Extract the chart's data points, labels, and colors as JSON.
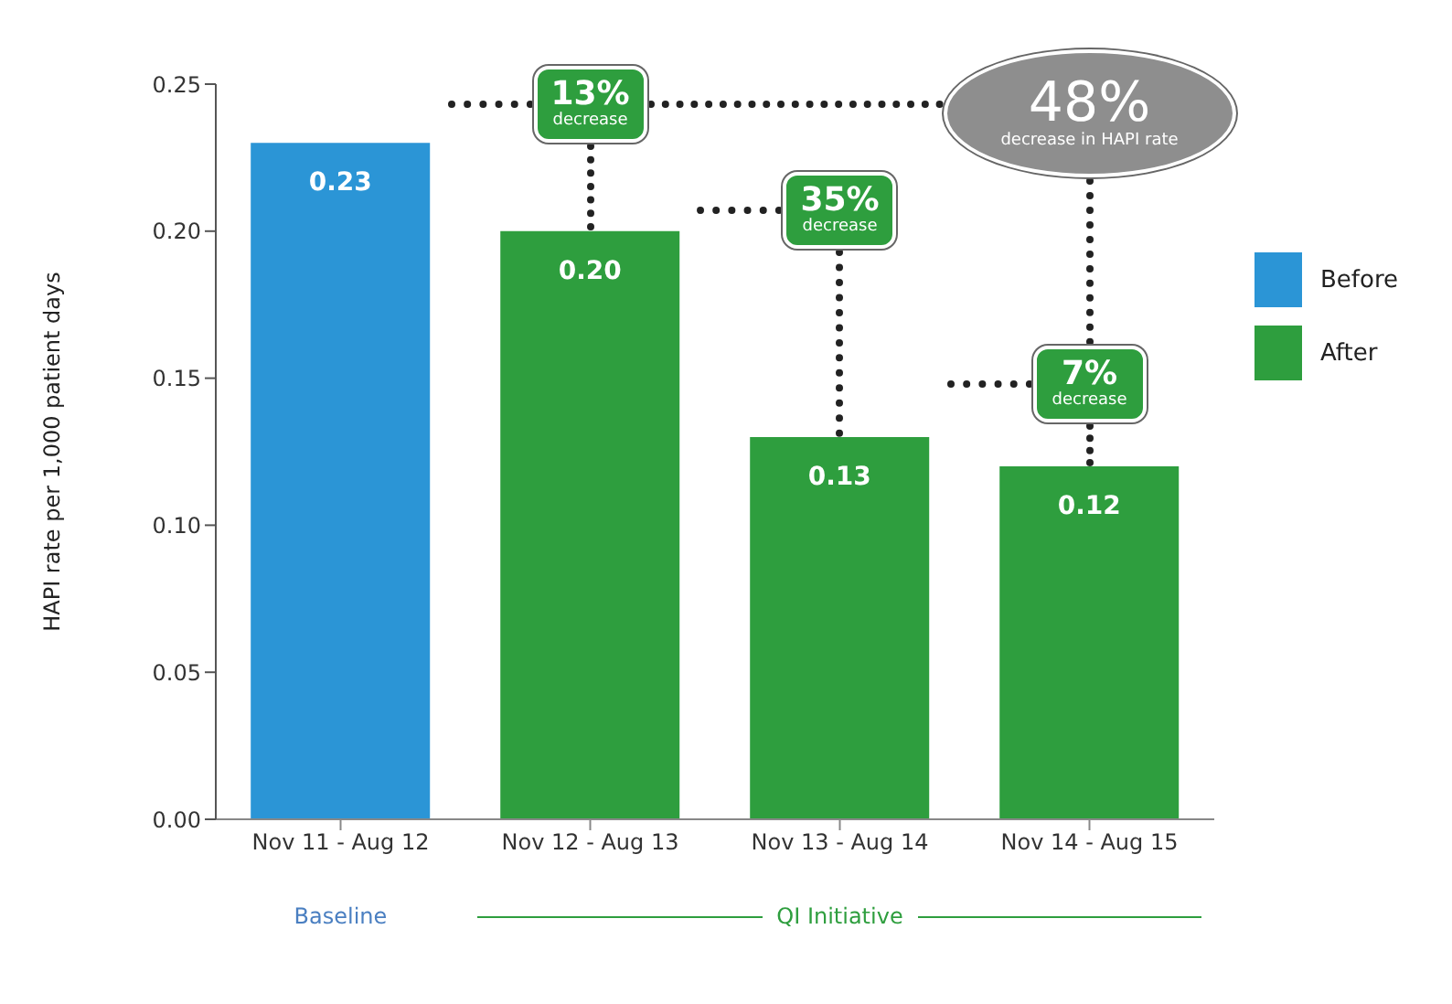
{
  "chart_data": {
    "type": "bar",
    "ylabel": "HAPI rate per 1,000 patient days",
    "categories": [
      "Nov 11 - Aug 12",
      "Nov 12 - Aug 13",
      "Nov 13 - Aug 14",
      "Nov 14 - Aug 15"
    ],
    "series": [
      {
        "name": "Before",
        "color": "#2b95d6",
        "values": [
          0.23,
          null,
          null,
          null
        ],
        "value_labels": [
          "0.23",
          null,
          null,
          null
        ]
      },
      {
        "name": "After",
        "color": "#2e9e3e",
        "values": [
          null,
          0.2,
          0.13,
          0.12
        ],
        "value_labels": [
          null,
          "0.20",
          "0.13",
          "0.12"
        ]
      }
    ],
    "stacked": true,
    "ylim": [
      0,
      0.25
    ],
    "yticks": [
      {
        "value": 0,
        "label": "0.00"
      },
      {
        "value": 0.05,
        "label": "0.05"
      },
      {
        "value": 0.1,
        "label": "0.10"
      },
      {
        "value": 0.15,
        "label": "0.15"
      },
      {
        "value": 0.2,
        "label": "0.20"
      },
      {
        "value": 0.25,
        "label": "0.25"
      }
    ],
    "grid": false,
    "legend": "right",
    "annotations": [
      {
        "text": "13% decrease",
        "x": "Nov 12 - Aug 13",
        "y": 0.2
      },
      {
        "text": "35% decrease",
        "x": "Nov 13 - Aug 14",
        "y": 0.13
      },
      {
        "text": "7% decrease",
        "x": "Nov 14 - Aug 15",
        "y": 0.12
      },
      "48% decrease in HAPI rate",
      "Baseline",
      "QI Initiative"
    ]
  }
}
